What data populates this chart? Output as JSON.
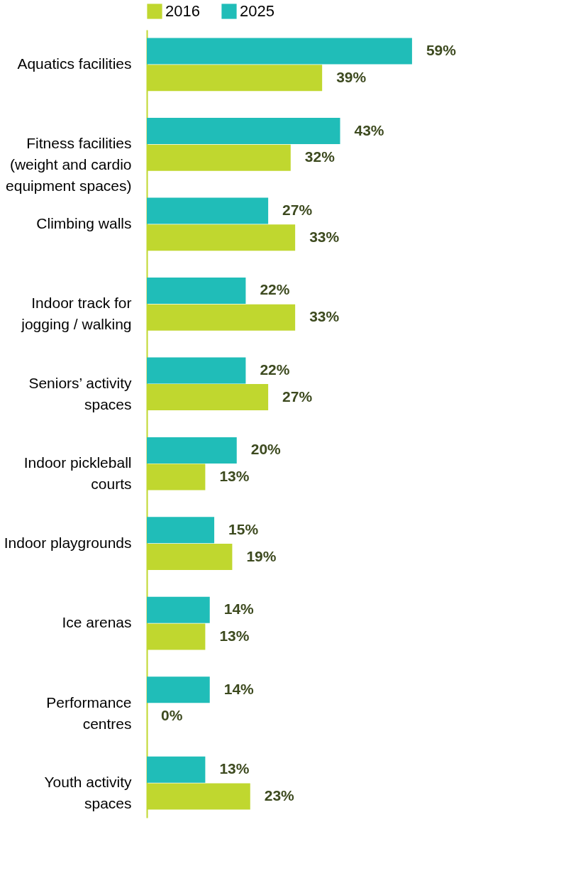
{
  "chart_data": {
    "type": "bar",
    "orientation": "horizontal",
    "categories": [
      "Aquatics facilities",
      "Fitness facilities\n(weight and cardio\nequipment spaces)",
      "Climbing walls",
      "Indoor track for\njogging / walking",
      "Seniors’ activity\nspaces",
      "Indoor pickleball\ncourts",
      "Indoor playgrounds",
      "Ice arenas",
      "Performance\ncentres",
      "Youth activity\nspaces"
    ],
    "series": [
      {
        "name": "2016",
        "color": "#c0d72f",
        "values": [
          39,
          32,
          33,
          33,
          27,
          13,
          19,
          13,
          0,
          23
        ],
        "value_labels": [
          "39%",
          "32%",
          "33%",
          "33%",
          "27%",
          "13%",
          "19%",
          "13%",
          "0%",
          "23%"
        ]
      },
      {
        "name": "2025",
        "color": "#20bdb8",
        "values": [
          59,
          43,
          27,
          22,
          22,
          20,
          15,
          14,
          14,
          13
        ],
        "value_labels": [
          "59%",
          "43%",
          "27%",
          "22%",
          "22%",
          "20%",
          "15%",
          "14%",
          "14%",
          "13%"
        ]
      }
    ],
    "legend": "top",
    "grid": false
  }
}
